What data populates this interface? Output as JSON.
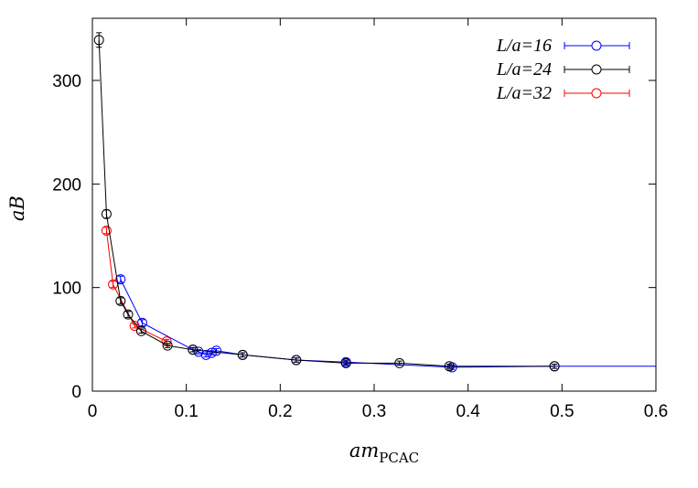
{
  "chart_data": {
    "type": "line",
    "title": "",
    "xlabel": "am",
    "xlabel_subscript": "PCAC",
    "ylabel": "aB",
    "xlim": [
      0,
      0.6
    ],
    "ylim": [
      0,
      360
    ],
    "xticks": [
      0,
      0.1,
      0.2,
      0.3,
      0.4,
      0.5,
      0.6
    ],
    "xtick_labels": [
      "0",
      "0.1",
      "0.2",
      "0.3",
      "0.4",
      "0.5",
      "0.6"
    ],
    "yticks": [
      0,
      100,
      200,
      300
    ],
    "ytick_labels": [
      "0",
      "100",
      "200",
      "300"
    ],
    "grid": false,
    "legend_position": "top-right",
    "series": [
      {
        "name": "L/a=16",
        "color": "#0000ff",
        "x": [
          0.03,
          0.053,
          0.107,
          0.113,
          0.121,
          0.127,
          0.132,
          0.16,
          0.217,
          0.27,
          0.383,
          0.492
        ],
        "y": [
          108,
          66,
          40,
          38,
          35,
          37,
          39,
          35,
          30,
          28,
          23,
          24
        ],
        "yerr": [
          3,
          3,
          2,
          2,
          2,
          2,
          2,
          2,
          2,
          2,
          2,
          2
        ],
        "fit_extends_to": 0.6,
        "fit_end_value": 24
      },
      {
        "name": "L/a=24",
        "color": "#000000",
        "x": [
          0.007,
          0.015,
          0.03,
          0.038,
          0.052,
          0.08,
          0.107,
          0.16,
          0.217,
          0.27,
          0.327,
          0.38,
          0.492
        ],
        "y": [
          339,
          171,
          87,
          74,
          58,
          44,
          40,
          35,
          30,
          27,
          27,
          24,
          24
        ],
        "yerr": [
          7,
          4,
          3,
          3,
          2,
          2,
          2,
          2,
          2,
          2,
          2,
          2,
          2
        ]
      },
      {
        "name": "L/a=32",
        "color": "#ff0000",
        "x": [
          0.015,
          0.022,
          0.045,
          0.079
        ],
        "y": [
          155,
          103,
          63,
          48
        ],
        "yerr": [
          3,
          3,
          2,
          2
        ]
      }
    ]
  }
}
